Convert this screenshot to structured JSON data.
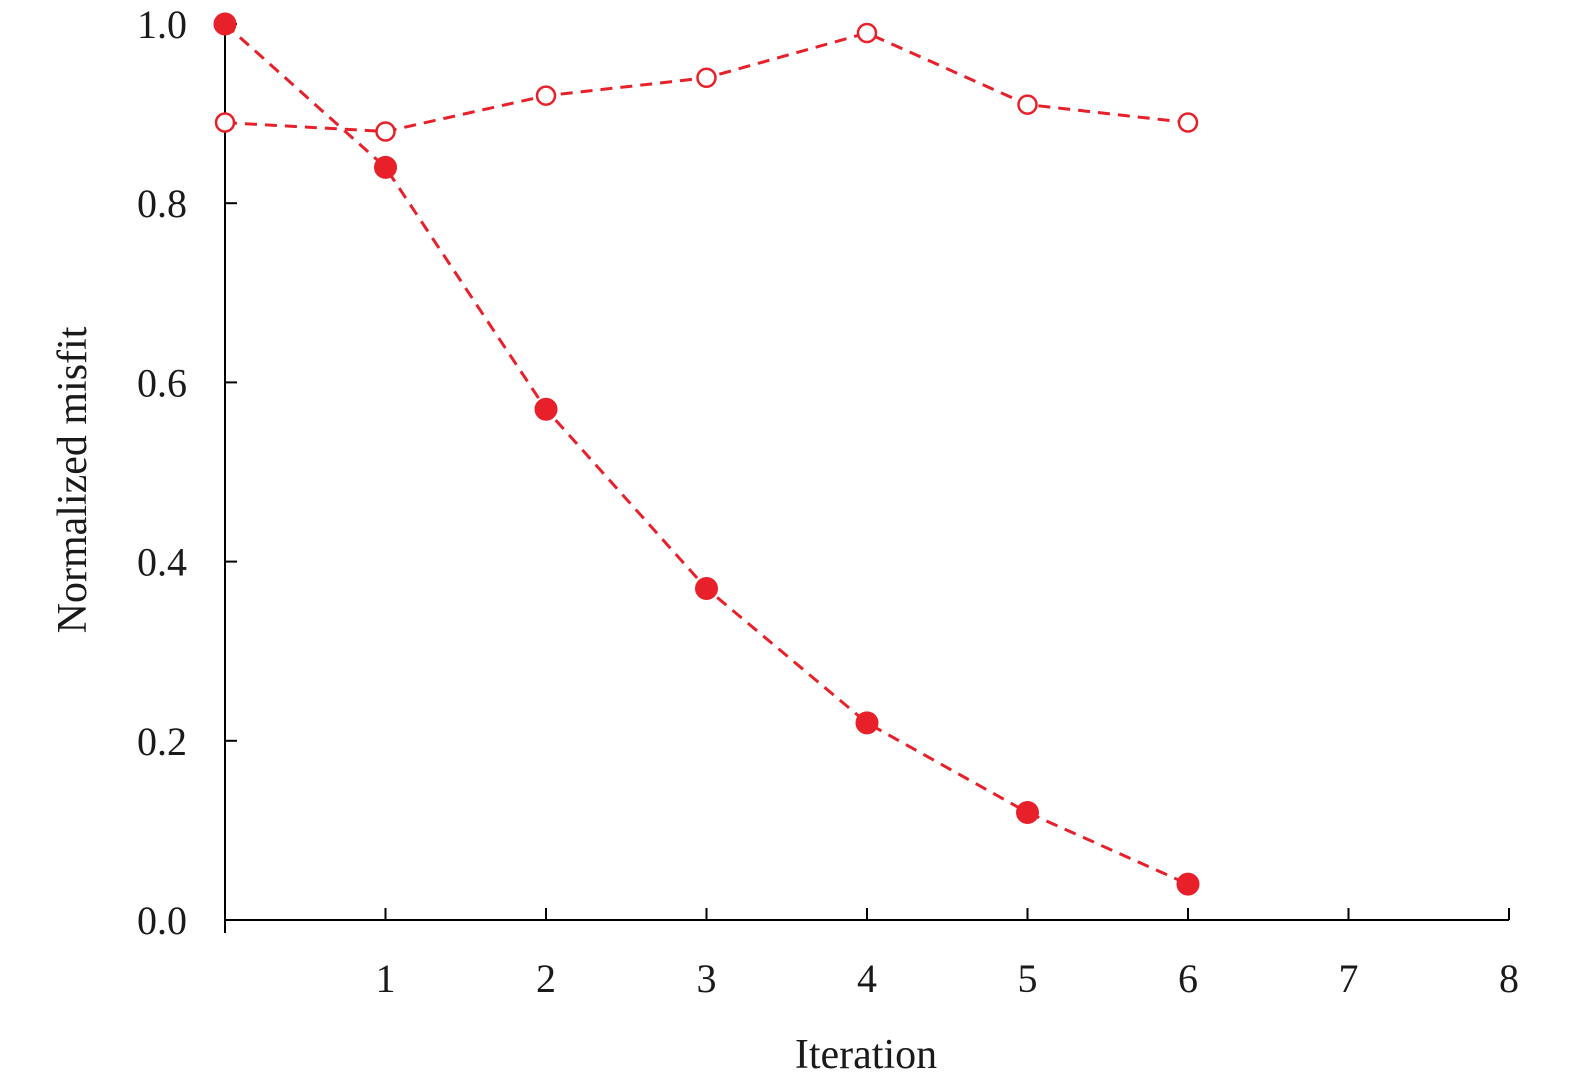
{
  "chart_data": {
    "type": "line",
    "xlabel": "Iteration",
    "ylabel": "Normalized misfit",
    "xlim": [
      0,
      8
    ],
    "ylim": [
      0,
      1
    ],
    "x_ticks": [
      1,
      2,
      3,
      4,
      5,
      6,
      7,
      8
    ],
    "x_tick_labels": [
      "1",
      "2",
      "3",
      "4",
      "5",
      "6",
      "7",
      "8"
    ],
    "y_ticks": [
      0,
      0.2,
      0.4,
      0.6,
      0.8,
      1.0
    ],
    "y_tick_labels": [
      "0.0",
      "0.2",
      "0.4",
      "0.6",
      "0.8",
      "1.0"
    ],
    "grid": false,
    "legend": "none",
    "series": [
      {
        "marker": "filled-circle",
        "line_style": "dashed",
        "color": "#e8202a",
        "x": [
          0,
          1,
          2,
          3,
          4,
          5,
          6
        ],
        "values": [
          1.0,
          0.84,
          0.57,
          0.37,
          0.22,
          0.12,
          0.04
        ]
      },
      {
        "marker": "open-circle",
        "line_style": "dashed",
        "color": "#e8202a",
        "x": [
          0,
          1,
          2,
          3,
          4,
          5,
          6
        ],
        "values": [
          0.89,
          0.88,
          0.92,
          0.94,
          0.99,
          0.91,
          0.89
        ]
      }
    ]
  }
}
